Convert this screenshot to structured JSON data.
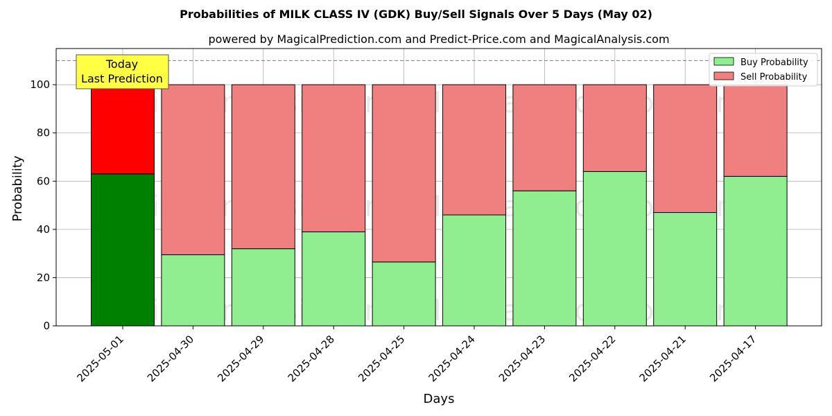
{
  "chart_data": {
    "type": "bar",
    "stacked": true,
    "title": "Probabilities of MILK CLASS IV (GDK) Buy/Sell Signals Over 5 Days (May 02)",
    "subtitle": "powered by MagicalPrediction.com and Predict-Price.com and MagicalAnalysis.com",
    "xlabel": "Days",
    "ylabel": "Probability",
    "ylim": [
      0,
      115
    ],
    "yticks": [
      0,
      20,
      40,
      60,
      80,
      100
    ],
    "grid": true,
    "legend_position": "top-right",
    "reference_line": 110,
    "categories": [
      "2025-05-01",
      "2025-04-30",
      "2025-04-29",
      "2025-04-28",
      "2025-04-25",
      "2025-04-24",
      "2025-04-23",
      "2025-04-22",
      "2025-04-21",
      "2025-04-17"
    ],
    "series": [
      {
        "name": "Buy Probability",
        "color": "#90ee90",
        "highlight_color": "#008000",
        "values": [
          63,
          29.5,
          32,
          39,
          26.5,
          46,
          56,
          64,
          47,
          62
        ]
      },
      {
        "name": "Sell Probability",
        "color": "#f08080",
        "highlight_color": "#ff0000",
        "values": [
          37,
          70.5,
          68,
          61,
          73.5,
          54,
          44,
          36,
          53,
          38
        ]
      }
    ],
    "annotation": {
      "line1": "Today",
      "line2": "Last Prediction",
      "color": "#ffff44"
    },
    "watermarks": [
      "MagicalAnalysis.com",
      "MagicalPrediction.com"
    ]
  }
}
